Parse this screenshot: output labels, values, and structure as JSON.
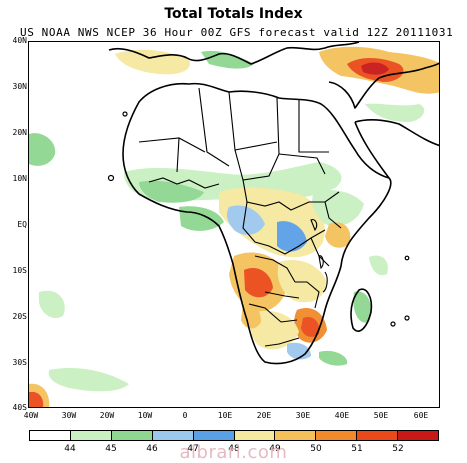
{
  "title": "Total Totals Index",
  "subtitle": "US NOAA NWS NCEP 36 Hour 00Z GFS forecast valid 12Z 20111031",
  "lat_labels": [
    "40N",
    "30N",
    "20N",
    "10N",
    "EQ",
    "10S",
    "20S",
    "30S",
    "40S"
  ],
  "lon_labels": [
    "40W",
    "30W",
    "20W",
    "10W",
    "0",
    "10E",
    "20E",
    "30E",
    "40E",
    "50E",
    "60E"
  ],
  "legend": {
    "values": [
      "44",
      "45",
      "46",
      "47",
      "48",
      "49",
      "50",
      "51",
      "52"
    ],
    "colors": [
      "#ffffff",
      "#c8f0c0",
      "#8fd690",
      "#9cc8ee",
      "#5aa0e6",
      "#f5e8a0",
      "#f4c05a",
      "#f08a2a",
      "#ea4a1a",
      "#c81818"
    ]
  },
  "watermark": "albrari.com"
}
